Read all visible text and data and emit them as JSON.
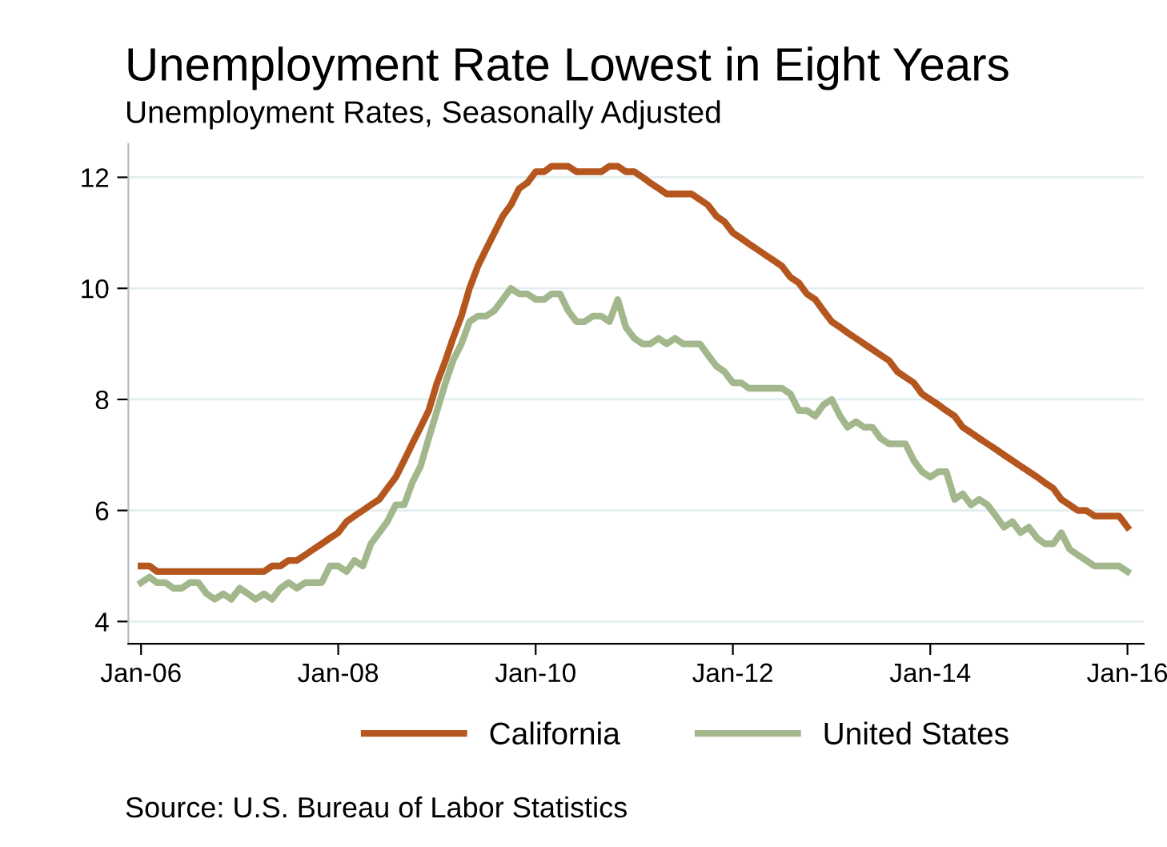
{
  "chart_data": {
    "type": "line",
    "title": "Unemployment Rate Lowest in Eight Years",
    "subtitle": "Unemployment Rates, Seasonally Adjusted",
    "x": [
      "2006-01",
      "2006-02",
      "2006-03",
      "2006-04",
      "2006-05",
      "2006-06",
      "2006-07",
      "2006-08",
      "2006-09",
      "2006-10",
      "2006-11",
      "2006-12",
      "2007-01",
      "2007-02",
      "2007-03",
      "2007-04",
      "2007-05",
      "2007-06",
      "2007-07",
      "2007-08",
      "2007-09",
      "2007-10",
      "2007-11",
      "2007-12",
      "2008-01",
      "2008-02",
      "2008-03",
      "2008-04",
      "2008-05",
      "2008-06",
      "2008-07",
      "2008-08",
      "2008-09",
      "2008-10",
      "2008-11",
      "2008-12",
      "2009-01",
      "2009-02",
      "2009-03",
      "2009-04",
      "2009-05",
      "2009-06",
      "2009-07",
      "2009-08",
      "2009-09",
      "2009-10",
      "2009-11",
      "2009-12",
      "2010-01",
      "2010-02",
      "2010-03",
      "2010-04",
      "2010-05",
      "2010-06",
      "2010-07",
      "2010-08",
      "2010-09",
      "2010-10",
      "2010-11",
      "2010-12",
      "2011-01",
      "2011-02",
      "2011-03",
      "2011-04",
      "2011-05",
      "2011-06",
      "2011-07",
      "2011-08",
      "2011-09",
      "2011-10",
      "2011-11",
      "2011-12",
      "2012-01",
      "2012-02",
      "2012-03",
      "2012-04",
      "2012-05",
      "2012-06",
      "2012-07",
      "2012-08",
      "2012-09",
      "2012-10",
      "2012-11",
      "2012-12",
      "2013-01",
      "2013-02",
      "2013-03",
      "2013-04",
      "2013-05",
      "2013-06",
      "2013-07",
      "2013-08",
      "2013-09",
      "2013-10",
      "2013-11",
      "2013-12",
      "2014-01",
      "2014-02",
      "2014-03",
      "2014-04",
      "2014-05",
      "2014-06",
      "2014-07",
      "2014-08",
      "2014-09",
      "2014-10",
      "2014-11",
      "2014-12",
      "2015-01",
      "2015-02",
      "2015-03",
      "2015-04",
      "2015-05",
      "2015-06",
      "2015-07",
      "2015-08",
      "2015-09",
      "2015-10",
      "2015-11",
      "2015-12",
      "2016-01"
    ],
    "series": [
      {
        "name": "California",
        "color": "#b5561f",
        "values": [
          5.0,
          5.0,
          4.9,
          4.9,
          4.9,
          4.9,
          4.9,
          4.9,
          4.9,
          4.9,
          4.9,
          4.9,
          4.9,
          4.9,
          4.9,
          4.9,
          5.0,
          5.0,
          5.1,
          5.1,
          5.2,
          5.3,
          5.4,
          5.5,
          5.6,
          5.8,
          5.9,
          6.0,
          6.1,
          6.2,
          6.4,
          6.6,
          6.9,
          7.2,
          7.5,
          7.8,
          8.3,
          8.7,
          9.1,
          9.5,
          10.0,
          10.4,
          10.7,
          11.0,
          11.3,
          11.5,
          11.8,
          11.9,
          12.1,
          12.1,
          12.2,
          12.2,
          12.2,
          12.1,
          12.1,
          12.1,
          12.1,
          12.2,
          12.2,
          12.1,
          12.1,
          12.0,
          11.9,
          11.8,
          11.7,
          11.7,
          11.7,
          11.7,
          11.6,
          11.5,
          11.3,
          11.2,
          11.0,
          10.9,
          10.8,
          10.7,
          10.6,
          10.5,
          10.4,
          10.2,
          10.1,
          9.9,
          9.8,
          9.6,
          9.4,
          9.3,
          9.2,
          9.1,
          9.0,
          8.9,
          8.8,
          8.7,
          8.5,
          8.4,
          8.3,
          8.1,
          8.0,
          7.9,
          7.8,
          7.7,
          7.5,
          7.4,
          7.3,
          7.2,
          7.1,
          7.0,
          6.9,
          6.8,
          6.7,
          6.6,
          6.5,
          6.4,
          6.2,
          6.1,
          6.0,
          6.0,
          5.9,
          5.9,
          5.9,
          5.9,
          5.7
        ]
      },
      {
        "name": "United States",
        "color": "#a3b78c",
        "values": [
          4.7,
          4.8,
          4.7,
          4.7,
          4.6,
          4.6,
          4.7,
          4.7,
          4.5,
          4.4,
          4.5,
          4.4,
          4.6,
          4.5,
          4.4,
          4.5,
          4.4,
          4.6,
          4.7,
          4.6,
          4.7,
          4.7,
          4.7,
          5.0,
          5.0,
          4.9,
          5.1,
          5.0,
          5.4,
          5.6,
          5.8,
          6.1,
          6.1,
          6.5,
          6.8,
          7.3,
          7.8,
          8.3,
          8.7,
          9.0,
          9.4,
          9.5,
          9.5,
          9.6,
          9.8,
          10.0,
          9.9,
          9.9,
          9.8,
          9.8,
          9.9,
          9.9,
          9.6,
          9.4,
          9.4,
          9.5,
          9.5,
          9.4,
          9.8,
          9.3,
          9.1,
          9.0,
          9.0,
          9.1,
          9.0,
          9.1,
          9.0,
          9.0,
          9.0,
          8.8,
          8.6,
          8.5,
          8.3,
          8.3,
          8.2,
          8.2,
          8.2,
          8.2,
          8.2,
          8.1,
          7.8,
          7.8,
          7.7,
          7.9,
          8.0,
          7.7,
          7.5,
          7.6,
          7.5,
          7.5,
          7.3,
          7.2,
          7.2,
          7.2,
          6.9,
          6.7,
          6.6,
          6.7,
          6.7,
          6.2,
          6.3,
          6.1,
          6.2,
          6.1,
          5.9,
          5.7,
          5.8,
          5.6,
          5.7,
          5.5,
          5.4,
          5.4,
          5.6,
          5.3,
          5.2,
          5.1,
          5.0,
          5.0,
          5.0,
          5.0,
          4.9
        ]
      }
    ],
    "xlim": [
      "2005-11-15",
      "2016-03-01"
    ],
    "xticks": [
      {
        "value": "2006-01",
        "label": "Jan-06"
      },
      {
        "value": "2008-01",
        "label": "Jan-08"
      },
      {
        "value": "2010-01",
        "label": "Jan-10"
      },
      {
        "value": "2012-01",
        "label": "Jan-12"
      },
      {
        "value": "2014-01",
        "label": "Jan-14"
      },
      {
        "value": "2016-01",
        "label": "Jan-16"
      }
    ],
    "ylim": [
      3.6,
      12.6
    ],
    "yticks": [
      4,
      6,
      8,
      10,
      12
    ],
    "grid": "y",
    "legend": "bottom",
    "marker": "none",
    "line_style": "solid",
    "annotations": [
      "Source: U.S. Bureau of Labor Statistics"
    ]
  }
}
